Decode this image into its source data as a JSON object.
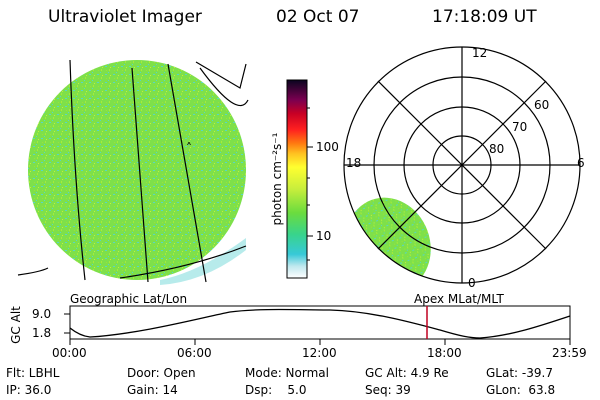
{
  "header": {
    "instrument": "Ultraviolet Imager",
    "date": "02 Oct 07",
    "time": "17:18:09 UT"
  },
  "colorbar": {
    "unit_label": "photon cm⁻²s⁻¹",
    "ticks": [
      "100",
      "10"
    ]
  },
  "polar_plot": {
    "lat_labels": [
      "60",
      "70",
      "80"
    ],
    "mlt_labels": [
      "12",
      "18",
      "6",
      "0"
    ]
  },
  "projection_labels": {
    "left": "Geographic Lat/Lon",
    "right": "Apex MLat/MLT"
  },
  "altitude_plot": {
    "ylabel": "GC Alt",
    "y_ticks": [
      "9.0",
      "1.8"
    ],
    "x_ticks": [
      "00:00",
      "06:00",
      "12:00",
      "18:00",
      "23:59"
    ],
    "marker_time": "17:18"
  },
  "status": {
    "flt": "Flt: LBHL",
    "ip": "IP: 36.0",
    "door": "Door: Open",
    "gain": "Gain: 14",
    "mode": "Mode: Normal",
    "dsp": "Dsp:    5.0",
    "gc_alt": "GC Alt: 4.9 Re",
    "seq": "Seq: 39",
    "glat": "GLat: -39.7",
    "glon": "GLon:  63.8"
  },
  "colors": {
    "earth_fill": "#7ee04a",
    "earth_speckle": "#56d6c8",
    "marker": "#c00020"
  }
}
